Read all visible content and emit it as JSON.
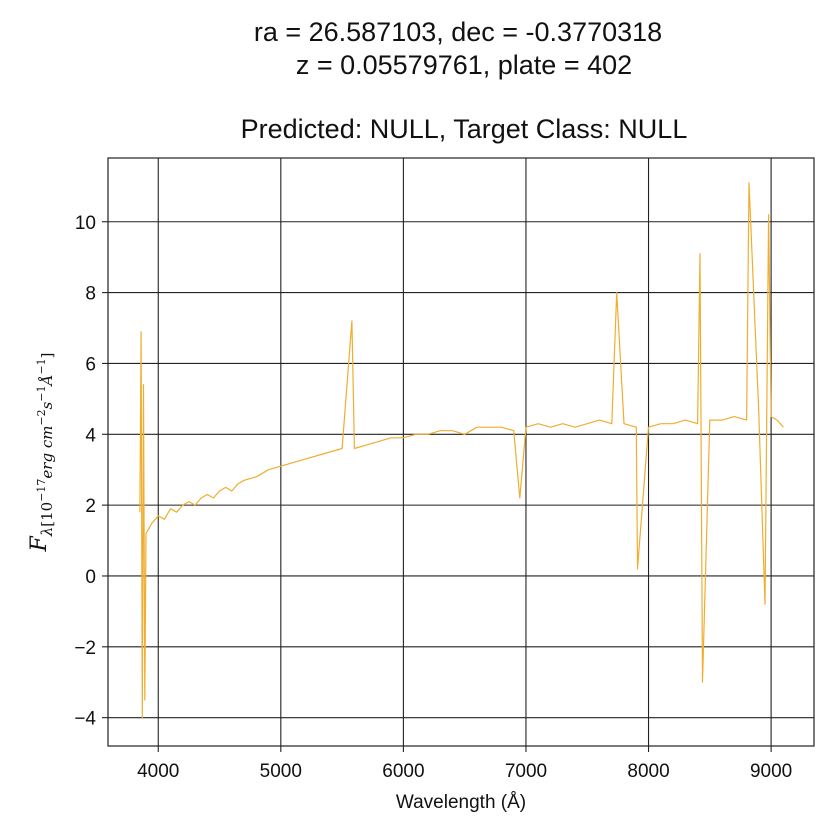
{
  "header": {
    "line1": "ra = 26.587103, dec = -0.3770318",
    "line2": "z = 0.05579761, plate = 402",
    "line3": "Predicted: NULL, Target Class: NULL"
  },
  "chart_data": {
    "type": "line",
    "title": "ra = 26.587103, dec = -0.3770318\nz = 0.05579761, plate = 402\n\nPredicted: NULL, Target Class: NULL",
    "xlabel": "Wavelength (Å)",
    "ylabel": "F_λ[10^-17 erg cm^-2 s^-1 Å^-1]",
    "xlim": [
      3590,
      9350
    ],
    "ylim": [
      -4.8,
      11.8
    ],
    "xticks": [
      4000,
      5000,
      6000,
      7000,
      8000,
      9000
    ],
    "xtick_labels": [
      "4000",
      "5000",
      "6000",
      "7000",
      "8000",
      "9000"
    ],
    "yticks": [
      -4,
      -2,
      0,
      2,
      4,
      6,
      8,
      10
    ],
    "ytick_labels": [
      "−4",
      "−2",
      "0",
      "2",
      "4",
      "6",
      "8",
      "10"
    ],
    "grid": true,
    "line_color": "#f0ad30",
    "series": [
      {
        "x": [
          3850,
          3860,
          3870,
          3880,
          3890,
          3900,
          3950,
          4000,
          4050,
          4100,
          4150,
          4200,
          4250,
          4300,
          4350,
          4400,
          4450,
          4500,
          4550,
          4600,
          4650,
          4700,
          4800,
          4900,
          5000,
          5100,
          5200,
          5300,
          5400,
          5500,
          5580,
          5600,
          5700,
          5800,
          5900,
          6000,
          6100,
          6200,
          6300,
          6400,
          6500,
          6600,
          6700,
          6800,
          6900,
          6950,
          7000,
          7100,
          7200,
          7300,
          7400,
          7500,
          7600,
          7700,
          7740,
          7800,
          7900,
          7910,
          8000,
          8100,
          8200,
          8300,
          8400,
          8420,
          8440,
          8500,
          8600,
          8700,
          8800,
          8820,
          8900,
          8950,
          8980,
          9000,
          9050,
          9100
        ],
        "values": [
          1.8,
          6.9,
          -4.0,
          5.4,
          -3.5,
          1.2,
          1.5,
          1.7,
          1.6,
          1.9,
          1.8,
          2.0,
          2.1,
          2.0,
          2.2,
          2.3,
          2.2,
          2.4,
          2.5,
          2.4,
          2.6,
          2.7,
          2.8,
          3.0,
          3.1,
          3.2,
          3.3,
          3.4,
          3.5,
          3.6,
          7.2,
          3.6,
          3.7,
          3.8,
          3.9,
          3.9,
          4.0,
          4.0,
          4.1,
          4.1,
          4.0,
          4.2,
          4.2,
          4.2,
          4.1,
          2.2,
          4.2,
          4.3,
          4.2,
          4.3,
          4.2,
          4.3,
          4.4,
          4.3,
          8.0,
          4.3,
          4.2,
          0.2,
          4.2,
          4.3,
          4.3,
          4.4,
          4.3,
          9.1,
          -3.0,
          4.4,
          4.4,
          4.5,
          4.4,
          11.1,
          4.6,
          -0.8,
          10.2,
          4.5,
          4.4,
          4.2
        ]
      }
    ]
  }
}
